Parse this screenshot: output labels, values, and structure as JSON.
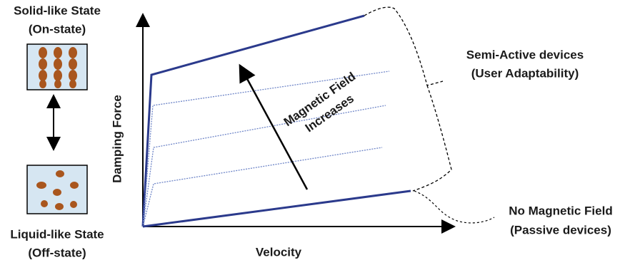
{
  "left": {
    "solid_title": "Solid-like State",
    "solid_subtitle": "(On-state)",
    "liquid_title": "Liquid-like State",
    "liquid_subtitle": "(Off-state)"
  },
  "axes": {
    "y_label": "Damping Force",
    "x_label": "Velocity"
  },
  "annotation": {
    "line1": "Magnetic Field",
    "line2": "Increases"
  },
  "semi_active": {
    "line1": "Semi-Active devices",
    "line2": "(User Adaptability)"
  },
  "passive": {
    "line1": "No Magnetic Field",
    "line2": "(Passive devices)"
  }
}
